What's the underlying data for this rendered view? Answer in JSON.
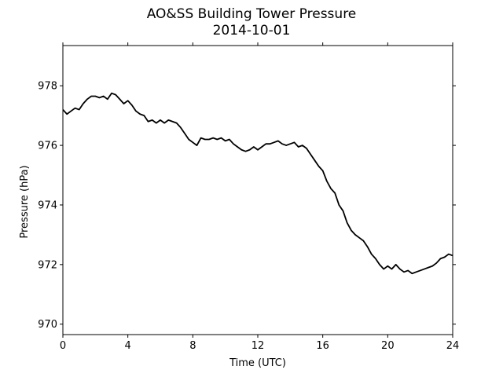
{
  "chart_data": {
    "type": "line",
    "title": "AO&SS Building Tower Pressure",
    "subtitle": "2014-10-01",
    "xlabel": "Time (UTC)",
    "ylabel": "Pressure (hPa)",
    "xlim": [
      0,
      24
    ],
    "ylim": [
      969.65,
      979.35
    ],
    "xticks": [
      0,
      4,
      8,
      12,
      16,
      20,
      24
    ],
    "yticks": [
      970,
      972,
      974,
      976,
      978
    ],
    "xtick_labels": [
      "0",
      "4",
      "8",
      "12",
      "16",
      "20",
      "24"
    ],
    "ytick_labels": [
      "970",
      "972",
      "974",
      "976",
      "978"
    ],
    "grid": false,
    "legend": "none",
    "series": [
      {
        "color": "#000000",
        "x": [
          0,
          0.25,
          0.5,
          0.75,
          1,
          1.25,
          1.5,
          1.75,
          2,
          2.25,
          2.5,
          2.75,
          3,
          3.25,
          3.5,
          3.75,
          4,
          4.25,
          4.5,
          4.75,
          5,
          5.25,
          5.5,
          5.75,
          6,
          6.25,
          6.5,
          6.75,
          7,
          7.25,
          7.5,
          7.75,
          8,
          8.25,
          8.5,
          8.75,
          9,
          9.25,
          9.5,
          9.75,
          10,
          10.25,
          10.5,
          10.75,
          11,
          11.25,
          11.5,
          11.75,
          12,
          12.25,
          12.5,
          12.75,
          13,
          13.25,
          13.5,
          13.75,
          14,
          14.25,
          14.5,
          14.75,
          15,
          15.25,
          15.5,
          15.75,
          16,
          16.25,
          16.5,
          16.75,
          17,
          17.25,
          17.5,
          17.75,
          18,
          18.25,
          18.5,
          18.75,
          19,
          19.25,
          19.5,
          19.75,
          20,
          20.25,
          20.5,
          20.75,
          21,
          21.25,
          21.5,
          21.75,
          22,
          22.25,
          22.5,
          22.75,
          23,
          23.25,
          23.5,
          23.75,
          24
        ],
        "y": [
          977.2,
          977.05,
          977.15,
          977.25,
          977.2,
          977.4,
          977.55,
          977.65,
          977.65,
          977.6,
          977.65,
          977.55,
          977.75,
          977.7,
          977.55,
          977.4,
          977.5,
          977.35,
          977.15,
          977.05,
          977.0,
          976.8,
          976.85,
          976.75,
          976.85,
          976.75,
          976.85,
          976.8,
          976.75,
          976.6,
          976.4,
          976.2,
          976.1,
          976.0,
          976.25,
          976.2,
          976.2,
          976.25,
          976.2,
          976.25,
          976.15,
          976.2,
          976.05,
          975.95,
          975.85,
          975.8,
          975.85,
          975.95,
          975.85,
          975.95,
          976.05,
          976.05,
          976.1,
          976.15,
          976.05,
          976.0,
          976.05,
          976.1,
          975.95,
          976.0,
          975.9,
          975.7,
          975.5,
          975.3,
          975.15,
          974.8,
          974.55,
          974.4,
          974.0,
          973.8,
          973.4,
          973.15,
          973.0,
          972.9,
          972.8,
          972.6,
          972.35,
          972.2,
          972.0,
          971.85,
          971.95,
          971.85,
          972.0,
          971.85,
          971.75,
          971.8,
          971.7,
          971.75,
          971.8,
          971.85,
          971.9,
          971.95,
          972.05,
          972.2,
          972.25,
          972.35,
          972.3
        ]
      }
    ]
  }
}
